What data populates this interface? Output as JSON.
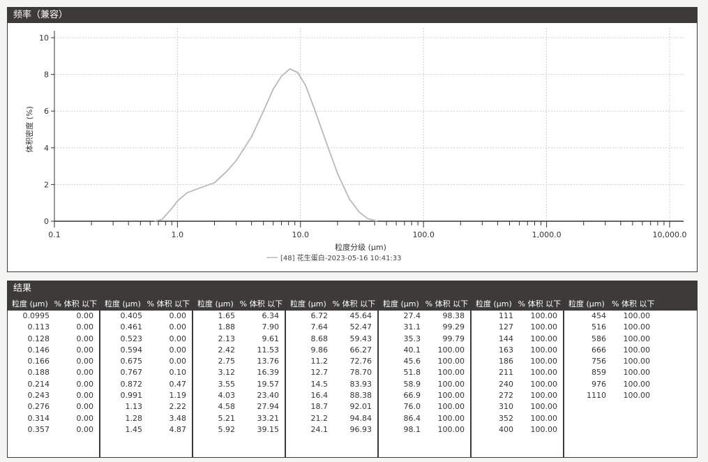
{
  "chart_panel": {
    "title": "频率（兼容）"
  },
  "chart_data": {
    "type": "line",
    "title": "",
    "xlabel": "粒度分级 (μm)",
    "ylabel": "体积密度 (%)",
    "x_scale": "log",
    "xlim": [
      0.1,
      10000
    ],
    "ylim": [
      0,
      10
    ],
    "x_ticks": [
      "0.1",
      "1.0",
      "10.0",
      "100.0",
      "1,000.0",
      "10,000.0"
    ],
    "y_ticks": [
      "0",
      "2",
      "4",
      "6",
      "8",
      "10"
    ],
    "grid": true,
    "legend_position": "bottom-center",
    "series": [
      {
        "name": "[48] 花生蛋白-2023-05-16 10:41:33",
        "color": "#b8b8bc",
        "x": [
          0.65,
          0.75,
          0.9,
          1.0,
          1.2,
          1.5,
          2.0,
          2.5,
          3.0,
          4.0,
          5.0,
          6.0,
          7.0,
          8.2,
          9.5,
          11,
          13,
          16,
          20,
          25,
          30,
          35,
          42
        ],
        "y": [
          0,
          0.1,
          0.7,
          1.1,
          1.55,
          1.8,
          2.1,
          2.7,
          3.3,
          4.6,
          6.0,
          7.2,
          7.9,
          8.3,
          8.1,
          7.4,
          6.1,
          4.4,
          2.6,
          1.2,
          0.5,
          0.15,
          0
        ]
      }
    ]
  },
  "results": {
    "title": "结果",
    "col_size": "粒度 (μm)",
    "col_vol": "% 体积 以下",
    "groups": [
      [
        [
          "0.0995",
          "0.00"
        ],
        [
          "0.113",
          "0.00"
        ],
        [
          "0.128",
          "0.00"
        ],
        [
          "0.146",
          "0.00"
        ],
        [
          "0.166",
          "0.00"
        ],
        [
          "0.188",
          "0.00"
        ],
        [
          "0.214",
          "0.00"
        ],
        [
          "0.243",
          "0.00"
        ],
        [
          "0.276",
          "0.00"
        ],
        [
          "0.314",
          "0.00"
        ],
        [
          "0.357",
          "0.00"
        ]
      ],
      [
        [
          "0.405",
          "0.00"
        ],
        [
          "0.461",
          "0.00"
        ],
        [
          "0.523",
          "0.00"
        ],
        [
          "0.594",
          "0.00"
        ],
        [
          "0.675",
          "0.00"
        ],
        [
          "0.767",
          "0.10"
        ],
        [
          "0.872",
          "0.47"
        ],
        [
          "0.991",
          "1.19"
        ],
        [
          "1.13",
          "2.22"
        ],
        [
          "1.28",
          "3.48"
        ],
        [
          "1.45",
          "4.87"
        ]
      ],
      [
        [
          "1.65",
          "6.34"
        ],
        [
          "1.88",
          "7.90"
        ],
        [
          "2.13",
          "9.61"
        ],
        [
          "2.42",
          "11.53"
        ],
        [
          "2.75",
          "13.76"
        ],
        [
          "3.12",
          "16.39"
        ],
        [
          "3.55",
          "19.57"
        ],
        [
          "4.03",
          "23.40"
        ],
        [
          "4.58",
          "27.94"
        ],
        [
          "5.21",
          "33.21"
        ],
        [
          "5.92",
          "39.15"
        ]
      ],
      [
        [
          "6.72",
          "45.64"
        ],
        [
          "7.64",
          "52.47"
        ],
        [
          "8.68",
          "59.43"
        ],
        [
          "9.86",
          "66.27"
        ],
        [
          "11.2",
          "72.76"
        ],
        [
          "12.7",
          "78.70"
        ],
        [
          "14.5",
          "83.93"
        ],
        [
          "16.4",
          "88.38"
        ],
        [
          "18.7",
          "92.01"
        ],
        [
          "21.2",
          "94.84"
        ],
        [
          "24.1",
          "96.93"
        ]
      ],
      [
        [
          "27.4",
          "98.38"
        ],
        [
          "31.1",
          "99.29"
        ],
        [
          "35.3",
          "99.79"
        ],
        [
          "40.1",
          "100.00"
        ],
        [
          "45.6",
          "100.00"
        ],
        [
          "51.8",
          "100.00"
        ],
        [
          "58.9",
          "100.00"
        ],
        [
          "66.9",
          "100.00"
        ],
        [
          "76.0",
          "100.00"
        ],
        [
          "86.4",
          "100.00"
        ],
        [
          "98.1",
          "100.00"
        ]
      ],
      [
        [
          "111",
          "100.00"
        ],
        [
          "127",
          "100.00"
        ],
        [
          "144",
          "100.00"
        ],
        [
          "163",
          "100.00"
        ],
        [
          "186",
          "100.00"
        ],
        [
          "211",
          "100.00"
        ],
        [
          "240",
          "100.00"
        ],
        [
          "272",
          "100.00"
        ],
        [
          "310",
          "100.00"
        ],
        [
          "352",
          "100.00"
        ],
        [
          "400",
          "100.00"
        ]
      ],
      [
        [
          "454",
          "100.00"
        ],
        [
          "516",
          "100.00"
        ],
        [
          "586",
          "100.00"
        ],
        [
          "666",
          "100.00"
        ],
        [
          "756",
          "100.00"
        ],
        [
          "859",
          "100.00"
        ],
        [
          "976",
          "100.00"
        ],
        [
          "1110",
          "100.00"
        ]
      ]
    ]
  }
}
